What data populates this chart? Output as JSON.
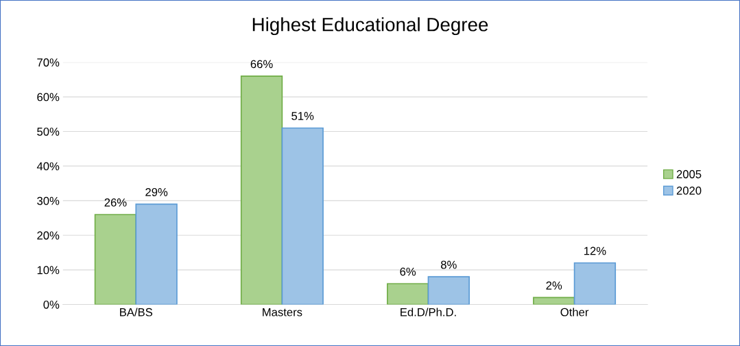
{
  "chart_data": {
    "type": "bar",
    "title": "Highest Educational Degree",
    "categories": [
      "BA/BS",
      "Masters",
      "Ed.D/Ph.D.",
      "Other"
    ],
    "series": [
      {
        "name": "2005",
        "color": "#a9d18e",
        "values": [
          26,
          66,
          6,
          2
        ],
        "value_labels": [
          "26%",
          "66%",
          "6%",
          "2%"
        ]
      },
      {
        "name": "2020",
        "color": "#9dc3e6",
        "values": [
          29,
          51,
          8,
          12
        ],
        "value_labels": [
          "29%",
          "51%",
          "8%",
          "12%"
        ]
      }
    ],
    "ylim": [
      0,
      70
    ],
    "yticks": [
      {
        "value": 0,
        "label": "0%"
      },
      {
        "value": 10,
        "label": "10%"
      },
      {
        "value": 20,
        "label": "20%"
      },
      {
        "value": 30,
        "label": "30%"
      },
      {
        "value": 40,
        "label": "40%"
      },
      {
        "value": 50,
        "label": "50%"
      },
      {
        "value": 60,
        "label": "60%"
      },
      {
        "value": 70,
        "label": "70%"
      }
    ],
    "grid": "y",
    "legend": "right"
  }
}
